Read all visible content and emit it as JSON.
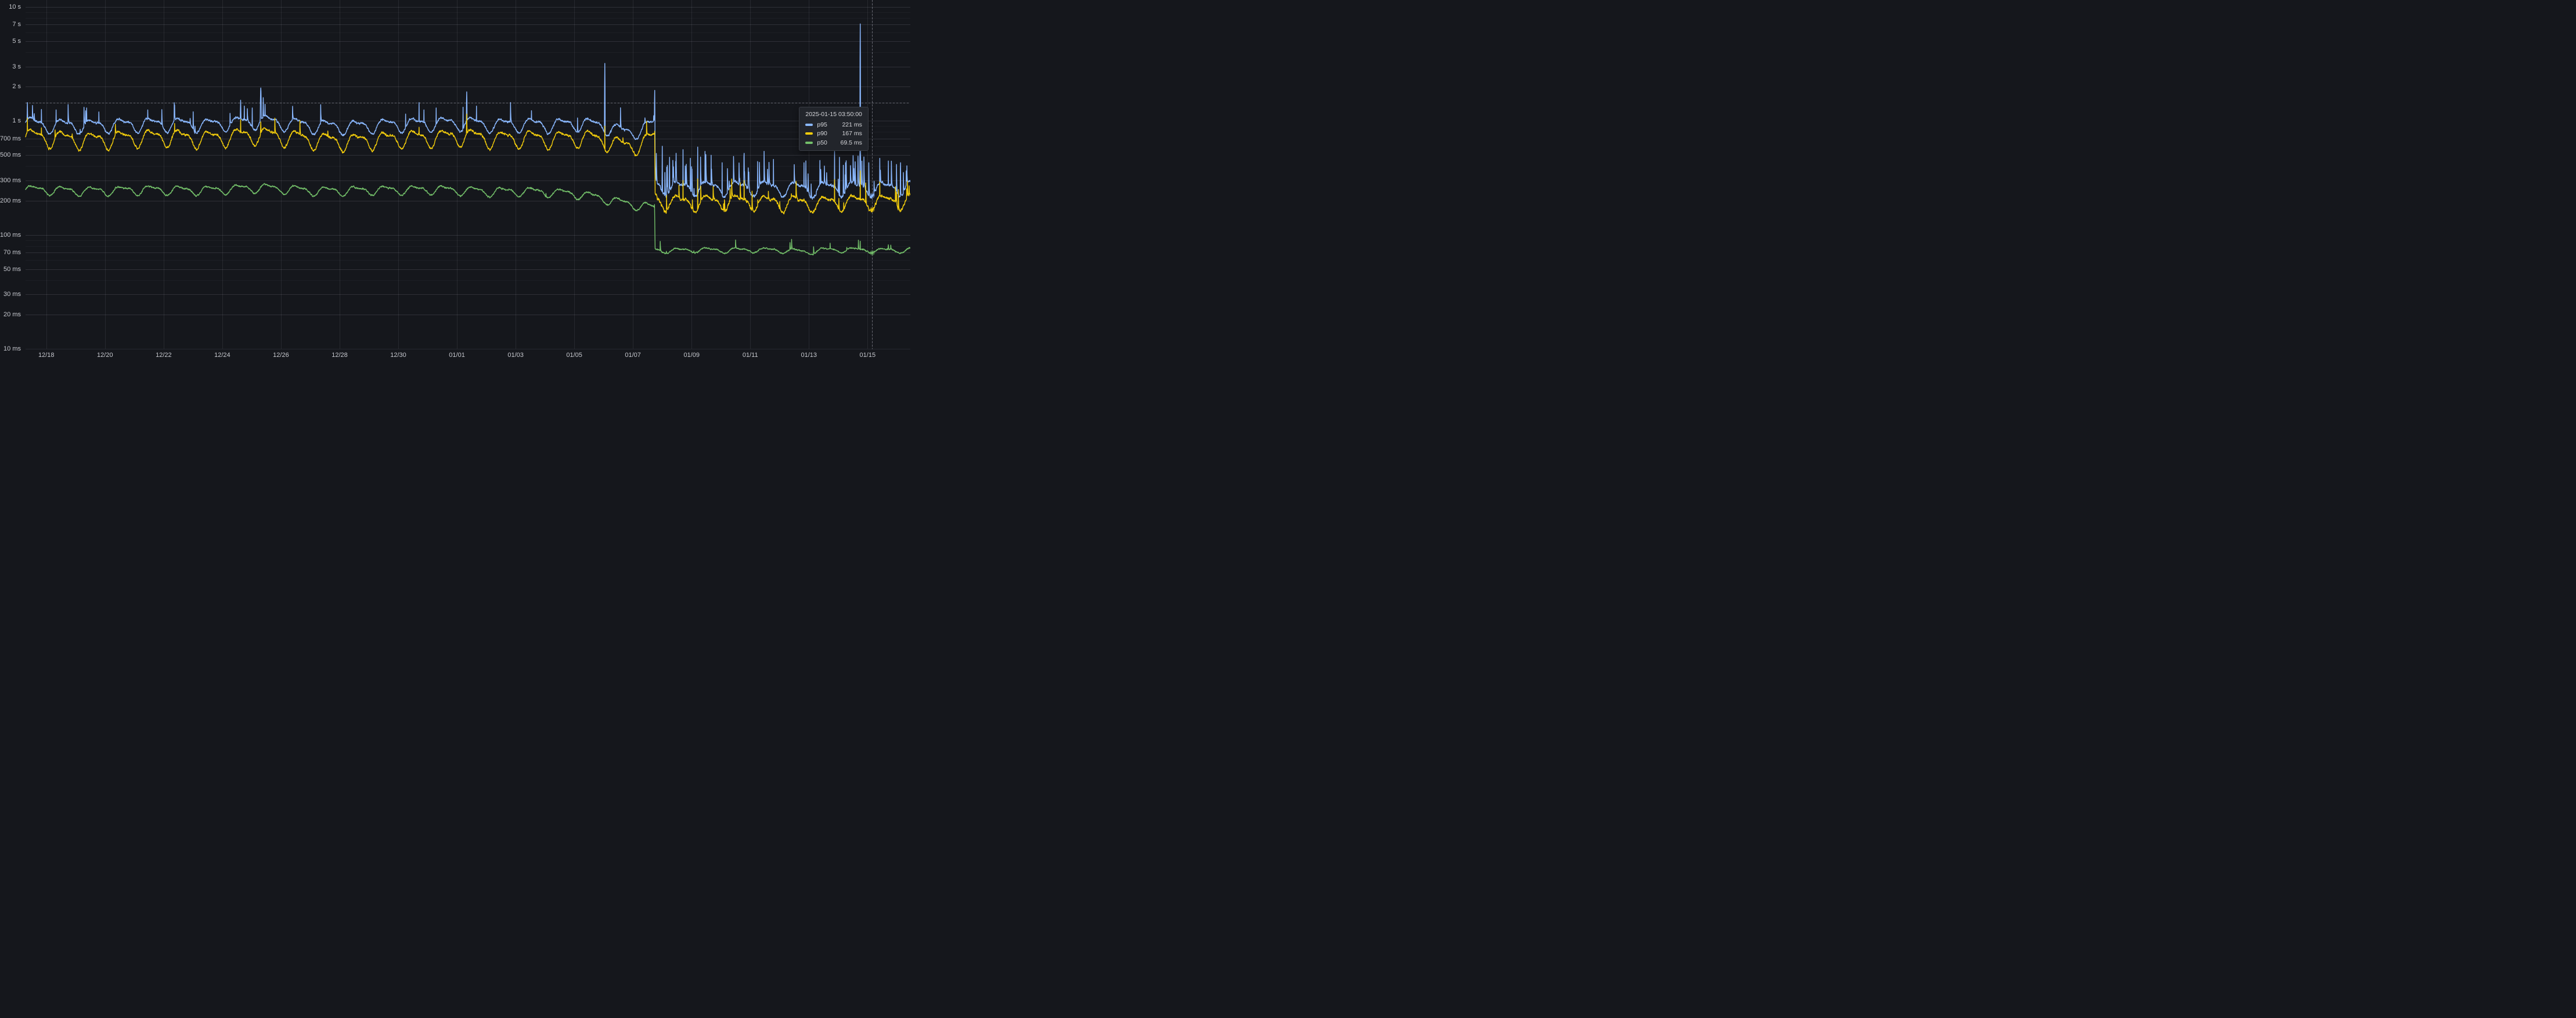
{
  "chart_data": {
    "type": "line",
    "y_axis": {
      "scale": "log10",
      "unit": "ms",
      "labeled_ticks": [
        {
          "label": "10 s",
          "ms": 10000
        },
        {
          "label": "7 s",
          "ms": 7000
        },
        {
          "label": "5 s",
          "ms": 5000
        },
        {
          "label": "3 s",
          "ms": 3000
        },
        {
          "label": "2 s",
          "ms": 2000
        },
        {
          "label": "1 s",
          "ms": 1000
        },
        {
          "label": "700 ms",
          "ms": 700
        },
        {
          "label": "500 ms",
          "ms": 500
        },
        {
          "label": "300 ms",
          "ms": 300
        },
        {
          "label": "200 ms",
          "ms": 200
        },
        {
          "label": "100 ms",
          "ms": 100
        },
        {
          "label": "70 ms",
          "ms": 70
        },
        {
          "label": "50 ms",
          "ms": 50
        },
        {
          "label": "30 ms",
          "ms": 30
        },
        {
          "label": "20 ms",
          "ms": 20
        },
        {
          "label": "10 ms",
          "ms": 10
        }
      ],
      "minor_gridlines_ms": [
        20,
        30,
        40,
        50,
        60,
        70,
        80,
        90,
        100,
        200,
        300,
        400,
        500,
        600,
        700,
        800,
        900,
        1000,
        2000,
        3000,
        4000,
        5000,
        6000,
        7000,
        8000,
        9000,
        10000
      ],
      "range_ms": [
        10,
        10000
      ]
    },
    "x_axis": {
      "start": "2024-12-17 07:00",
      "total_hours": 724,
      "ticks": [
        {
          "label": "12/18",
          "hour": 17
        },
        {
          "label": "12/20",
          "hour": 65
        },
        {
          "label": "12/22",
          "hour": 113
        },
        {
          "label": "12/24",
          "hour": 161
        },
        {
          "label": "12/26",
          "hour": 209
        },
        {
          "label": "12/28",
          "hour": 257
        },
        {
          "label": "12/30",
          "hour": 305
        },
        {
          "label": "01/01",
          "hour": 353
        },
        {
          "label": "01/03",
          "hour": 401
        },
        {
          "label": "01/05",
          "hour": 449
        },
        {
          "label": "01/07",
          "hour": 497
        },
        {
          "label": "01/09",
          "hour": 545
        },
        {
          "label": "01/11",
          "hour": 593
        },
        {
          "label": "01/13",
          "hour": 641
        },
        {
          "label": "01/15",
          "hour": 689
        }
      ]
    },
    "time": {
      "start_local_hour": 7,
      "sample_minutes": 10
    },
    "daily_wave": {
      "peak_local_hour": 14,
      "trough_local_hour": 2
    },
    "series": [
      {
        "name": "p95",
        "color": "#8AB8FF",
        "seed": 11,
        "base": [
          [
            0,
            980
          ],
          [
            12,
            930
          ],
          [
            24,
            925
          ],
          [
            48,
            905
          ],
          [
            72,
            930
          ],
          [
            96,
            940
          ],
          [
            120,
            950
          ],
          [
            144,
            925
          ],
          [
            168,
            960
          ],
          [
            192,
            1000
          ],
          [
            216,
            950
          ],
          [
            240,
            905
          ],
          [
            264,
            895
          ],
          [
            288,
            920
          ],
          [
            312,
            940
          ],
          [
            336,
            950
          ],
          [
            360,
            970
          ],
          [
            384,
            925
          ],
          [
            408,
            940
          ],
          [
            432,
            930
          ],
          [
            456,
            950
          ],
          [
            470,
            920
          ],
          [
            490,
            800
          ],
          [
            503,
            830
          ],
          [
            510,
            900
          ],
          [
            514.7,
            950
          ],
          [
            515.1,
            300
          ],
          [
            517,
            272
          ],
          [
            528,
            258
          ],
          [
            552,
            262
          ],
          [
            576,
            260
          ],
          [
            600,
            262
          ],
          [
            624,
            258
          ],
          [
            648,
            255
          ],
          [
            672,
            260
          ],
          [
            696,
            258
          ],
          [
            724,
            263
          ]
        ],
        "amp": [
          [
            0,
            0.15
          ],
          [
            514,
            0.15
          ],
          [
            515.5,
            0.16
          ],
          [
            724,
            0.16
          ]
        ],
        "sigma": [
          [
            0,
            0.022
          ],
          [
            514,
            0.022
          ],
          [
            516,
            0.03
          ],
          [
            724,
            0.03
          ]
        ],
        "burst_p": [
          [
            0,
            0.004
          ],
          [
            514,
            0.004
          ],
          [
            516,
            0.055
          ],
          [
            724,
            0.055
          ]
        ],
        "burst_m": [
          [
            0,
            0.3
          ],
          [
            514,
            0.3
          ],
          [
            516,
            0.5
          ],
          [
            724,
            0.5
          ]
        ],
        "spikes": [
          [
            1.5,
            1450,
            0.5
          ],
          [
            13,
            1260,
            0.35
          ],
          [
            25,
            1250,
            0.35
          ],
          [
            50,
            1300,
            0.45
          ],
          [
            60,
            1200,
            0.3
          ],
          [
            100,
            1250,
            0.4
          ],
          [
            122,
            1380,
            0.5
          ],
          [
            176,
            1520,
            0.6
          ],
          [
            179,
            1350,
            0.4
          ],
          [
            185.5,
            1300,
            0.4
          ],
          [
            192.5,
            1950,
            0.9
          ],
          [
            194.5,
            1600,
            0.5
          ],
          [
            196,
            1400,
            0.4
          ],
          [
            311,
            1150,
            0.4
          ],
          [
            322,
            1450,
            0.4
          ],
          [
            326,
            1250,
            0.3
          ],
          [
            336,
            1300,
            0.35
          ],
          [
            358,
            1320,
            0.4
          ],
          [
            361,
            1800,
            0.55
          ],
          [
            369,
            1350,
            0.35
          ],
          [
            414,
            1230,
            0.4
          ],
          [
            474,
            3200,
            0.35
          ],
          [
            514.8,
            1880,
            0.4
          ],
          [
            521,
            600,
            0.3
          ],
          [
            527,
            480,
            0.25
          ],
          [
            538,
            560,
            0.3
          ],
          [
            544,
            470,
            0.25
          ],
          [
            550,
            590,
            0.3
          ],
          [
            556,
            540,
            0.25
          ],
          [
            561,
            500,
            0.25
          ],
          [
            570,
            430,
            0.25
          ],
          [
            588,
            520,
            0.3
          ],
          [
            599,
            440,
            0.25
          ],
          [
            612,
            460,
            0.25
          ],
          [
            637,
            430,
            0.25
          ],
          [
            650,
            450,
            0.25
          ],
          [
            662,
            540,
            0.3
          ],
          [
            666,
            480,
            0.25
          ],
          [
            671,
            430,
            0.25
          ],
          [
            683,
            7100,
            0.28
          ],
          [
            690,
            430,
            0.25
          ],
          [
            699,
            470,
            0.25
          ],
          [
            706,
            445,
            0.25
          ],
          [
            716,
            430,
            0.25
          ]
        ]
      },
      {
        "name": "p90",
        "color": "#F2CC0C",
        "seed": 23,
        "base": [
          [
            0,
            745
          ],
          [
            24,
            705
          ],
          [
            48,
            685
          ],
          [
            72,
            700
          ],
          [
            96,
            720
          ],
          [
            120,
            730
          ],
          [
            144,
            700
          ],
          [
            168,
            730
          ],
          [
            192,
            762
          ],
          [
            216,
            720
          ],
          [
            240,
            680
          ],
          [
            264,
            662
          ],
          [
            288,
            690
          ],
          [
            312,
            710
          ],
          [
            336,
            720
          ],
          [
            360,
            740
          ],
          [
            384,
            700
          ],
          [
            408,
            712
          ],
          [
            432,
            700
          ],
          [
            456,
            720
          ],
          [
            470,
            690
          ],
          [
            490,
            600
          ],
          [
            503,
            630
          ],
          [
            510,
            680
          ],
          [
            514.7,
            730
          ],
          [
            515.1,
            222
          ],
          [
            517,
            200
          ],
          [
            528,
            194
          ],
          [
            576,
            196
          ],
          [
            624,
            193
          ],
          [
            648,
            190
          ],
          [
            672,
            196
          ],
          [
            700,
            196
          ],
          [
            724,
            200
          ]
        ],
        "amp": [
          [
            0,
            0.185
          ],
          [
            514,
            0.185
          ],
          [
            515.5,
            0.17
          ],
          [
            724,
            0.17
          ]
        ],
        "sigma": [
          [
            0,
            0.024
          ],
          [
            514,
            0.024
          ],
          [
            516,
            0.03
          ],
          [
            724,
            0.03
          ]
        ],
        "burst_p": [
          [
            0,
            0.003
          ],
          [
            514,
            0.003
          ],
          [
            516,
            0.028
          ],
          [
            724,
            0.028
          ]
        ],
        "burst_m": [
          [
            0,
            0.22
          ],
          [
            514,
            0.22
          ],
          [
            516,
            0.3
          ],
          [
            724,
            0.3
          ]
        ],
        "spikes": [
          [
            1.5,
            1060,
            0.4
          ],
          [
            13,
            870,
            0.3
          ],
          [
            122,
            950,
            0.4
          ],
          [
            176,
            1030,
            0.5
          ],
          [
            192.5,
            980,
            0.7
          ],
          [
            322,
            880,
            0.3
          ],
          [
            361,
            1150,
            0.5
          ],
          [
            474,
            900,
            0.3
          ],
          [
            514.8,
            830,
            0.35
          ],
          [
            538,
            300,
            0.25
          ],
          [
            550,
            310,
            0.25
          ],
          [
            588,
            300,
            0.25
          ],
          [
            662,
            305,
            0.25
          ],
          [
            683,
            365,
            0.25
          ],
          [
            699,
            292,
            0.2
          ]
        ]
      },
      {
        "name": "p50",
        "color": "#73BF69",
        "seed": 37,
        "base": [
          [
            0,
            252
          ],
          [
            24,
            247
          ],
          [
            48,
            243
          ],
          [
            96,
            250
          ],
          [
            144,
            246
          ],
          [
            192,
            260
          ],
          [
            240,
            243
          ],
          [
            288,
            248
          ],
          [
            336,
            250
          ],
          [
            384,
            240
          ],
          [
            408,
            242
          ],
          [
            432,
            235
          ],
          [
            449,
            232
          ],
          [
            470,
            212
          ],
          [
            490,
            190
          ],
          [
            505,
            180
          ],
          [
            514.7,
            171
          ],
          [
            515.1,
            73.5
          ],
          [
            528,
            72.5
          ],
          [
            552,
            74
          ],
          [
            576,
            73.5
          ],
          [
            600,
            74
          ],
          [
            624,
            73
          ],
          [
            641,
            70.5
          ],
          [
            652,
            73.5
          ],
          [
            676,
            74
          ],
          [
            700,
            73
          ],
          [
            724,
            73.5
          ]
        ],
        "amp": [
          [
            0,
            0.1
          ],
          [
            514,
            0.1
          ],
          [
            515.5,
            0.055
          ],
          [
            724,
            0.055
          ]
        ],
        "sigma": [
          [
            0,
            0.017
          ],
          [
            514,
            0.017
          ],
          [
            516,
            0.014
          ],
          [
            724,
            0.014
          ]
        ],
        "burst_p": [
          [
            0,
            0.002
          ],
          [
            514,
            0.002
          ],
          [
            516,
            0.015
          ],
          [
            724,
            0.015
          ]
        ],
        "burst_m": [
          [
            0,
            0.15
          ],
          [
            724,
            0.12
          ]
        ],
        "spikes": [
          [
            683,
            88,
            0.22
          ]
        ]
      }
    ],
    "cursor": {
      "hour": 692.83,
      "value_ms": 1440,
      "crosshair": "dashed"
    },
    "tooltip": {
      "timestamp": "2025-01-15 03:50:00",
      "rows": [
        {
          "label": "p95",
          "value": "221 ms",
          "value_ms": 221,
          "color": "#8AB8FF"
        },
        {
          "label": "p90",
          "value": "167 ms",
          "value_ms": 167,
          "color": "#F2CC0C"
        },
        {
          "label": "p50",
          "value": "69.5 ms",
          "value_ms": 69.5,
          "color": "#73BF69"
        }
      ]
    }
  },
  "colors": {
    "background": "#15171c",
    "grid_major": "rgba(204,204,220,0.10)",
    "grid_minor": "rgba(204,204,220,0.05)",
    "axis_text": "#c6c8ce",
    "crosshair": "rgba(204,204,220,0.45)"
  }
}
